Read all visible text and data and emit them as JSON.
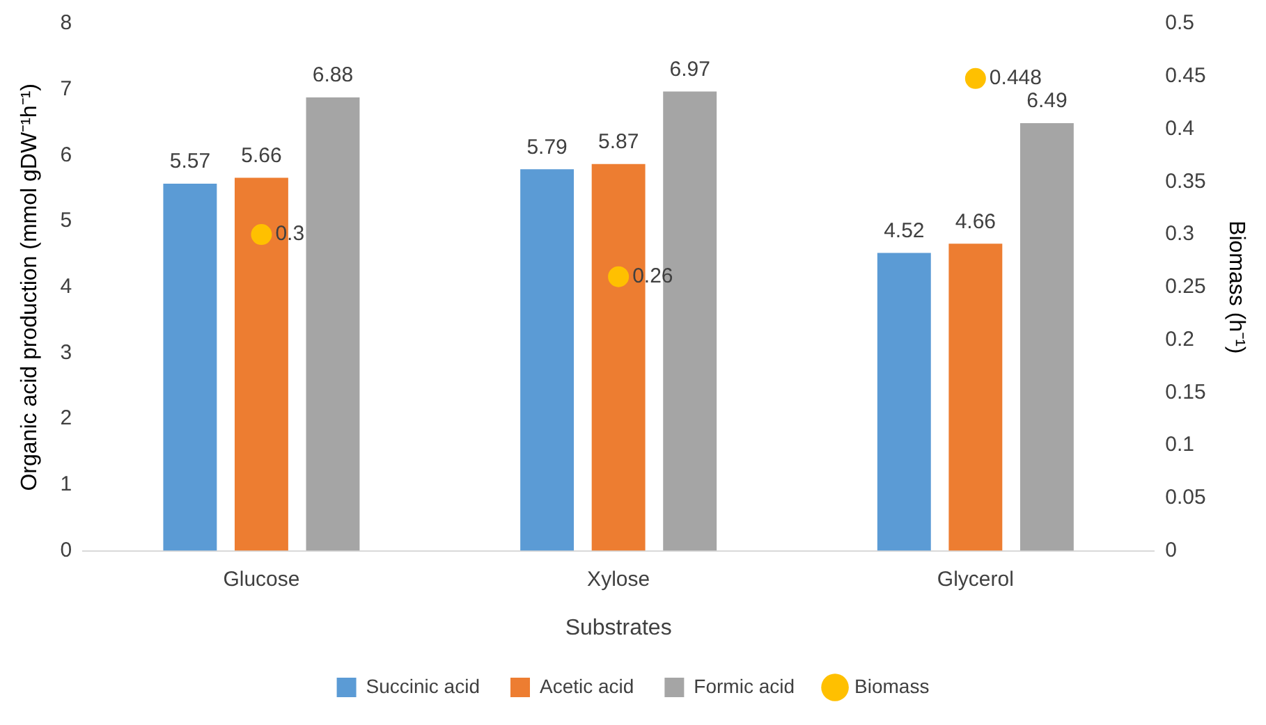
{
  "chart_data": {
    "type": "bar",
    "xlabel": "Substrates",
    "ylabel": "Organic acid production (mmol gDW⁻¹h⁻¹)",
    "y2label": "Biomass (h⁻¹)",
    "categories": [
      "Glucose",
      "Xylose",
      "Glycerol"
    ],
    "series": [
      {
        "name": "Succinic acid",
        "color": "#5b9bd5",
        "values": [
          5.57,
          5.79,
          4.52
        ]
      },
      {
        "name": "Acetic acid",
        "color": "#ed7d31",
        "values": [
          5.66,
          5.87,
          4.66
        ]
      },
      {
        "name": "Formic acid",
        "color": "#a5a5a5",
        "values": [
          6.88,
          6.97,
          6.49
        ]
      },
      {
        "name": "Biomass",
        "type": "scatter",
        "axis": "y2",
        "color": "#ffc000",
        "x": [
          "Glucose",
          "Xylose",
          "Glycerol"
        ],
        "values": [
          0.3,
          0.26,
          0.448
        ]
      }
    ],
    "ylim": [
      0,
      8
    ],
    "yticks": [
      0,
      1,
      2,
      3,
      4,
      5,
      6,
      7,
      8
    ],
    "y2lim": [
      0,
      0.5
    ],
    "y2ticks": [
      0,
      0.05,
      0.1,
      0.15,
      0.2,
      0.25,
      0.3,
      0.35,
      0.4,
      0.45,
      0.5
    ],
    "data_labels": true,
    "legend": "bottom",
    "grid": false,
    "marker": "circle"
  }
}
